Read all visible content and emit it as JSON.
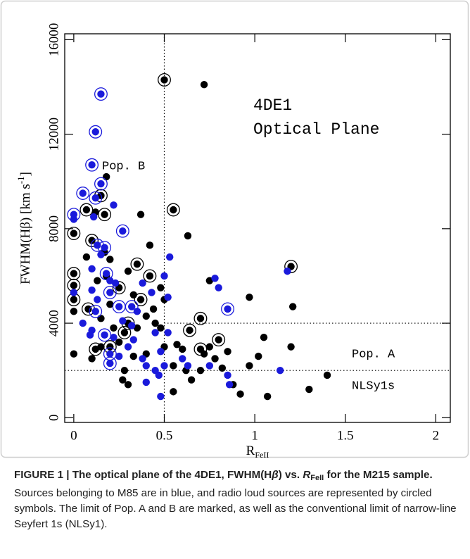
{
  "chart_data": {
    "type": "scatter",
    "xlabel": {
      "text": "R",
      "sub": "FeII"
    },
    "ylabel": {
      "text": "FWHM(Hβ) [km s",
      "sup": "-1",
      "end": "]"
    },
    "xlim": [
      -0.05,
      2.08
    ],
    "ylim": [
      -200,
      16250
    ],
    "xticks": [
      0,
      0.5,
      1,
      1.5,
      2
    ],
    "yticks": [
      0,
      4000,
      8000,
      12000,
      16000
    ],
    "reference_lines": [
      {
        "x": 0.5
      },
      {
        "y": 4000,
        "xmin": 0.5
      },
      {
        "y": 2000
      }
    ],
    "annotations": [
      "4DE1",
      "Optical Plane",
      "Pop. B",
      "Pop. A",
      "NLSy1s"
    ],
    "series": [
      {
        "color": "#000000",
        "x": [
          0.72,
          0.5,
          0.18,
          0.15,
          0.17,
          0.07,
          0.12,
          0.37,
          0.55,
          0.0,
          0.1,
          0.17,
          0.63,
          0.42,
          0.35,
          0.07,
          0.0,
          0.0,
          0.0,
          0.0,
          0.08,
          0.13,
          0.18,
          0.2,
          0.25,
          0.3,
          0.33,
          0.37,
          0.42,
          0.48,
          0.5,
          0.44,
          0.45,
          0.4,
          0.35,
          0.3,
          0.28,
          0.25,
          0.2,
          0.15,
          0.12,
          0.1,
          0.0,
          0.15,
          0.2,
          0.22,
          0.28,
          0.3,
          0.27,
          0.33,
          0.4,
          0.48,
          0.5,
          0.55,
          0.57,
          0.6,
          0.64,
          0.65,
          0.7,
          0.7,
          0.72,
          0.75,
          0.78,
          0.8,
          0.82,
          0.85,
          0.88,
          0.92,
          0.97,
          0.97,
          1.02,
          1.05,
          1.07,
          1.2,
          1.2,
          1.21,
          1.3,
          1.4,
          0.75,
          0.7,
          0.62,
          0.55
        ],
        "values": [
          14100,
          14300,
          10200,
          9400,
          8600,
          8800,
          8700,
          8600,
          8800,
          7800,
          7500,
          7000,
          7700,
          7300,
          6500,
          6800,
          6100,
          5600,
          5000,
          4500,
          4600,
          5800,
          6000,
          6700,
          5500,
          6200,
          5200,
          5000,
          6000,
          5500,
          5000,
          4600,
          4000,
          4300,
          3800,
          4000,
          3600,
          3200,
          3000,
          3000,
          2900,
          2500,
          2700,
          4200,
          4800,
          3800,
          2000,
          1400,
          1600,
          2600,
          2700,
          3800,
          3000,
          1100,
          3100,
          2900,
          3700,
          1600,
          4200,
          2900,
          2700,
          3000,
          2500,
          3300,
          2100,
          2800,
          1400,
          1000,
          2200,
          5100,
          2600,
          3400,
          900,
          6400,
          3000,
          4700,
          1200,
          1800,
          5800,
          2000,
          2000,
          2200
        ],
        "circled": [
          false,
          true,
          false,
          true,
          true,
          true,
          false,
          false,
          true,
          true,
          true,
          false,
          false,
          false,
          true,
          false,
          true,
          true,
          true,
          false,
          true,
          false,
          false,
          false,
          true,
          false,
          false,
          true,
          true,
          false,
          false,
          false,
          false,
          false,
          false,
          true,
          true,
          false,
          true,
          false,
          true,
          false,
          false,
          false,
          false,
          false,
          false,
          false,
          false,
          false,
          false,
          false,
          false,
          false,
          false,
          false,
          true,
          false,
          true,
          true,
          false,
          false,
          false,
          true,
          false,
          false,
          false,
          false,
          false,
          false,
          false,
          false,
          false,
          true,
          false,
          false,
          false,
          false,
          false,
          false,
          false,
          false
        ]
      },
      {
        "color": "#1a1adb",
        "x": [
          0.15,
          0.12,
          0.1,
          0.05,
          0.12,
          0.15,
          0.0,
          0.0,
          0.11,
          0.22,
          0.27,
          0.13,
          0.17,
          0.15,
          0.1,
          0.18,
          0.2,
          0.23,
          0.0,
          0.1,
          0.13,
          0.2,
          0.25,
          0.32,
          0.35,
          0.12,
          0.05,
          0.1,
          0.17,
          0.22,
          0.2,
          0.2,
          0.25,
          0.3,
          0.33,
          0.38,
          0.4,
          0.45,
          0.48,
          0.52,
          0.5,
          0.47,
          0.5,
          0.53,
          0.52,
          0.43,
          0.38,
          0.45,
          0.4,
          0.48,
          0.6,
          0.63,
          0.75,
          0.78,
          0.8,
          0.85,
          0.85,
          0.86,
          1.18,
          1.14,
          0.09,
          0.27,
          0.32
        ],
        "values": [
          13700,
          12100,
          10700,
          9500,
          9300,
          9900,
          8600,
          8400,
          8500,
          9000,
          7900,
          7300,
          7200,
          6900,
          6300,
          6100,
          5800,
          5700,
          5300,
          5400,
          5000,
          5300,
          4700,
          4700,
          4500,
          4500,
          4000,
          3700,
          3500,
          3400,
          2700,
          2300,
          2600,
          3000,
          3300,
          2500,
          2200,
          3600,
          2800,
          3600,
          2200,
          1800,
          6000,
          6800,
          5100,
          5300,
          5700,
          2000,
          1500,
          900,
          2500,
          2200,
          2200,
          5900,
          5500,
          4600,
          1800,
          1400,
          6200,
          2000,
          3500,
          4100,
          3900
        ],
        "circled": [
          true,
          true,
          true,
          true,
          true,
          true,
          true,
          false,
          false,
          false,
          true,
          true,
          true,
          false,
          false,
          true,
          false,
          false,
          false,
          false,
          false,
          true,
          true,
          true,
          false,
          true,
          false,
          false,
          true,
          false,
          true,
          true,
          false,
          false,
          false,
          false,
          false,
          false,
          false,
          false,
          false,
          false,
          false,
          false,
          false,
          false,
          false,
          false,
          false,
          false,
          false,
          false,
          false,
          false,
          false,
          true,
          false,
          false,
          false,
          false,
          false,
          false,
          false
        ]
      }
    ]
  },
  "caption": [
    {
      "text": "FIGURE 1 | The optical plane of the 4DE1, FWHM(H",
      "style": "bold"
    },
    {
      "text": "β",
      "style": "bold-italic"
    },
    {
      "text": ") vs. ",
      "style": "bold"
    },
    {
      "text": "R",
      "style": "bold-italic"
    },
    {
      "text": "FeII",
      "style": "bold-sub"
    },
    {
      "text": " for the M215 sample.",
      "style": "bold"
    },
    {
      "text": " Sources belonging to M85 are in blue, and radio loud sources are represented by circled symbols. The limit of Pop. A and B are marked, as well as the conventional limit of narrow-line Seyfert 1s (NLSy1).",
      "style": "normal"
    }
  ]
}
